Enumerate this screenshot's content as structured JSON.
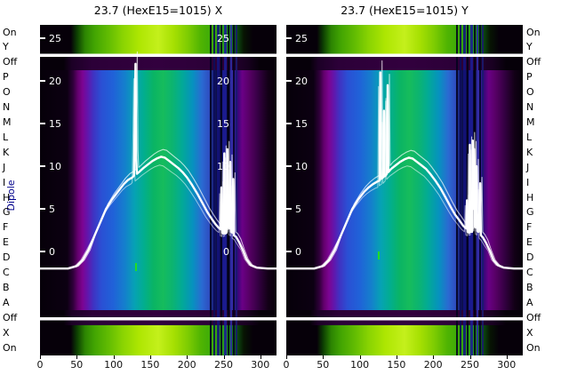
{
  "colors": {
    "background": "#ffffff",
    "plot_bg": "#060009",
    "line": "#ffffff",
    "labels": "#000000",
    "ylabel": "#00008b",
    "mark_green": "#22dd22"
  },
  "ylabel": "Dipole",
  "chart_data": {
    "type": "heatmap",
    "colormap": "nipy_spectral-like (black-purple-blue-green with bright green on/off bands)",
    "x_range": [
      0,
      322
    ],
    "x_ticks": [
      0,
      50,
      100,
      150,
      200,
      250,
      300
    ],
    "rows": [
      "On",
      "Y",
      "Off",
      "P",
      "O",
      "N",
      "M",
      "L",
      "K",
      "J",
      "I",
      "H",
      "G",
      "F",
      "E",
      "D",
      "C",
      "B",
      "A",
      "Off",
      "X",
      "On"
    ],
    "overlay_axis": {
      "ticks": [
        25,
        20,
        15,
        10,
        5,
        0
      ],
      "color": "#ffffff"
    },
    "panels": [
      {
        "title": "23.7 (HexE15=1015) X",
        "gap_numbers": true,
        "marks": [
          [
            107,
            268
          ]
        ],
        "line_series": [
          [
            0,
            -2
          ],
          [
            38,
            -2
          ],
          [
            50,
            -1.7
          ],
          [
            58,
            -1
          ],
          [
            66,
            0.2
          ],
          [
            74,
            1.8
          ],
          [
            82,
            3.4
          ],
          [
            90,
            5
          ],
          [
            98,
            6.1
          ],
          [
            106,
            7
          ],
          [
            114,
            7.9
          ],
          [
            120,
            8.4
          ],
          [
            126,
            8.7
          ],
          [
            128,
            8.9
          ],
          [
            129,
            15.5
          ],
          [
            130,
            22
          ],
          [
            131,
            11
          ],
          [
            132,
            9.1
          ],
          [
            136,
            9.4
          ],
          [
            141,
            9.8
          ],
          [
            147,
            10.2
          ],
          [
            153,
            10.6
          ],
          [
            159,
            10.9
          ],
          [
            165,
            11.1
          ],
          [
            170,
            11
          ],
          [
            176,
            10.6
          ],
          [
            182,
            10.2
          ],
          [
            188,
            9.8
          ],
          [
            194,
            9.3
          ],
          [
            200,
            8.7
          ],
          [
            207,
            7.8
          ],
          [
            214,
            6.8
          ],
          [
            221,
            5.7
          ],
          [
            228,
            4.6
          ],
          [
            234,
            3.8
          ],
          [
            239,
            3.2
          ],
          [
            243,
            2.8
          ],
          [
            246,
            2.6
          ],
          [
            247,
            7.5
          ],
          [
            248,
            2.2
          ],
          [
            250,
            2.1
          ],
          [
            251,
            11.5
          ],
          [
            252,
            2.1
          ],
          [
            254,
            2.2
          ],
          [
            255,
            12
          ],
          [
            256,
            2.8
          ],
          [
            258,
            2.7
          ],
          [
            259,
            10.5
          ],
          [
            260,
            2.3
          ],
          [
            262,
            2.2
          ],
          [
            263,
            8.5
          ],
          [
            264,
            1.9
          ],
          [
            267,
            1.7
          ],
          [
            271,
            1.1
          ],
          [
            276,
            0.2
          ],
          [
            281,
            -0.9
          ],
          [
            287,
            -1.6
          ],
          [
            295,
            -1.9
          ],
          [
            310,
            -2
          ],
          [
            322,
            -2
          ]
        ]
      },
      {
        "title": "23.7 (HexE15=1015) Y",
        "gap_numbers": false,
        "marks": [
          [
            103,
            255
          ]
        ],
        "line_series": [
          [
            0,
            -2
          ],
          [
            38,
            -2
          ],
          [
            50,
            -1.7
          ],
          [
            58,
            -1
          ],
          [
            66,
            0.2
          ],
          [
            74,
            1.8
          ],
          [
            82,
            3.4
          ],
          [
            90,
            5
          ],
          [
            98,
            6.1
          ],
          [
            106,
            7
          ],
          [
            112,
            7.5
          ],
          [
            118,
            7.9
          ],
          [
            124,
            8.2
          ],
          [
            127,
            8.3
          ],
          [
            128,
            21
          ],
          [
            129,
            8.5
          ],
          [
            132,
            8.7
          ],
          [
            133,
            16.5
          ],
          [
            134,
            8.8
          ],
          [
            137,
            9.1
          ],
          [
            138,
            19.5
          ],
          [
            139,
            9.3
          ],
          [
            143,
            9.7
          ],
          [
            149,
            10.1
          ],
          [
            155,
            10.5
          ],
          [
            161,
            10.8
          ],
          [
            167,
            11
          ],
          [
            172,
            10.9
          ],
          [
            178,
            10.5
          ],
          [
            184,
            10.1
          ],
          [
            190,
            9.7
          ],
          [
            196,
            9.1
          ],
          [
            203,
            8.3
          ],
          [
            210,
            7.4
          ],
          [
            217,
            6.3
          ],
          [
            224,
            5.2
          ],
          [
            230,
            4.3
          ],
          [
            236,
            3.6
          ],
          [
            241,
            3
          ],
          [
            245,
            2.7
          ],
          [
            246,
            6
          ],
          [
            247,
            2.3
          ],
          [
            249,
            2.2
          ],
          [
            250,
            12.5
          ],
          [
            251,
            2.3
          ],
          [
            253,
            2.3
          ],
          [
            254,
            13
          ],
          [
            255,
            5
          ],
          [
            256,
            12
          ],
          [
            257,
            2.9
          ],
          [
            258,
            2.8
          ],
          [
            259,
            10
          ],
          [
            260,
            2.4
          ],
          [
            262,
            2.3
          ],
          [
            264,
            8
          ],
          [
            265,
            1.9
          ],
          [
            268,
            1.6
          ],
          [
            272,
            1
          ],
          [
            277,
            0.1
          ],
          [
            282,
            -1
          ],
          [
            288,
            -1.6
          ],
          [
            296,
            -1.9
          ],
          [
            310,
            -2
          ],
          [
            322,
            -2
          ]
        ]
      }
    ],
    "gradients": {
      "main": [
        [
          0,
          "#060009"
        ],
        [
          0.115,
          "#0c0012"
        ],
        [
          0.14,
          "#30003a"
        ],
        [
          0.16,
          "#64006e"
        ],
        [
          0.18,
          "#7c0492"
        ],
        [
          0.2,
          "#6414aa"
        ],
        [
          0.225,
          "#4032c2"
        ],
        [
          0.26,
          "#2a50d4"
        ],
        [
          0.31,
          "#2062d8"
        ],
        [
          0.36,
          "#1480cc"
        ],
        [
          0.4,
          "#06a2b4"
        ],
        [
          0.44,
          "#02ae8e"
        ],
        [
          0.48,
          "#0ab464"
        ],
        [
          0.52,
          "#16bc5c"
        ],
        [
          0.56,
          "#0cb470"
        ],
        [
          0.6,
          "#02aa96"
        ],
        [
          0.645,
          "#0692be"
        ],
        [
          0.685,
          "#2a6ad2"
        ],
        [
          0.715,
          "#2e4ec0"
        ],
        [
          0.735,
          "#141a6e"
        ],
        [
          0.755,
          "#05052e"
        ],
        [
          0.775,
          "#1c1c96"
        ],
        [
          0.795,
          "#030318"
        ],
        [
          0.815,
          "#3c2cb0"
        ],
        [
          0.832,
          "#2c0a78"
        ],
        [
          0.855,
          "#6a0086"
        ],
        [
          0.885,
          "#570065"
        ],
        [
          0.925,
          "#320040"
        ],
        [
          0.965,
          "#120016"
        ],
        [
          1,
          "#060009"
        ]
      ],
      "band": [
        [
          0,
          "#060009"
        ],
        [
          0.13,
          "#060009"
        ],
        [
          0.155,
          "#0c3c02"
        ],
        [
          0.19,
          "#2c8402"
        ],
        [
          0.23,
          "#42a402"
        ],
        [
          0.29,
          "#62bc02"
        ],
        [
          0.35,
          "#8ad402"
        ],
        [
          0.42,
          "#aee602"
        ],
        [
          0.5,
          "#c4f01c"
        ],
        [
          0.565,
          "#a6e002"
        ],
        [
          0.625,
          "#7ecc02"
        ],
        [
          0.68,
          "#50b402"
        ],
        [
          0.735,
          "#38a80a"
        ],
        [
          0.79,
          "#22961e"
        ],
        [
          0.825,
          "#0e5a14"
        ],
        [
          0.862,
          "#071403"
        ],
        [
          0.9,
          "#060009"
        ],
        [
          1,
          "#060009"
        ]
      ],
      "off": [
        [
          0,
          "#060009"
        ],
        [
          0.1,
          "#060009"
        ],
        [
          0.135,
          "#1c0026"
        ],
        [
          0.22,
          "#2c0038"
        ],
        [
          0.5,
          "#32003e"
        ],
        [
          0.78,
          "#2a0036"
        ],
        [
          0.875,
          "#180020"
        ],
        [
          0.93,
          "#060009"
        ],
        [
          1,
          "#060009"
        ]
      ]
    },
    "stripes": [
      [
        191,
        2,
        "#02021c"
      ],
      [
        195,
        2,
        "#0c0c5a"
      ],
      [
        199,
        3,
        "#13137e"
      ],
      [
        203,
        2,
        "#02021a"
      ],
      [
        207,
        3,
        "#1d1d94"
      ],
      [
        211,
        2,
        "#020216"
      ],
      [
        214,
        2,
        "#2e2ea6"
      ],
      [
        217,
        2,
        "#020220"
      ],
      [
        220,
        2,
        "#1a1a70"
      ]
    ]
  }
}
